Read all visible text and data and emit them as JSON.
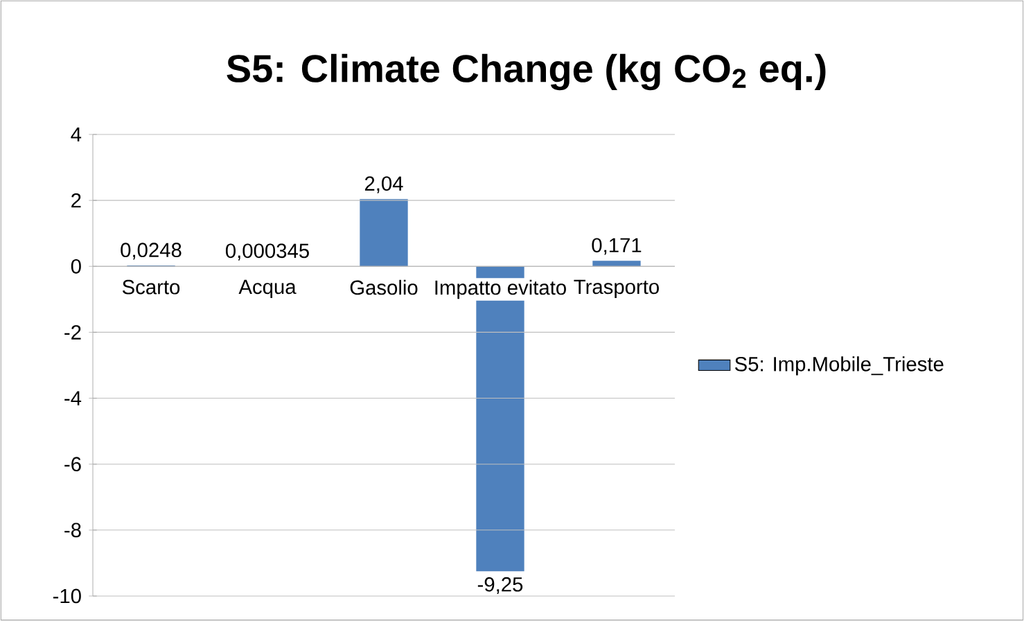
{
  "chart_data": {
    "type": "bar",
    "title": "S5: Climate Change (kg CO$_{2}$ eq.)",
    "categories": [
      "Scarto",
      "Acqua",
      "Gasolio",
      "Impatto evitato",
      "Trasporto"
    ],
    "series": [
      {
        "name": "S5: Imp.Mobile_Trieste",
        "color": "#4f81bd",
        "values": [
          0.0248,
          0.000345,
          2.04,
          -9.25,
          0.171
        ],
        "value_labels": [
          "0,0248",
          "0,000345",
          "2,04",
          "-9,25",
          "0,171"
        ]
      }
    ],
    "ylim": [
      -10,
      4
    ],
    "yticks": [
      -10,
      -8,
      -6,
      -4,
      -2,
      0,
      2,
      4
    ],
    "grid": "y",
    "legend": "right"
  }
}
